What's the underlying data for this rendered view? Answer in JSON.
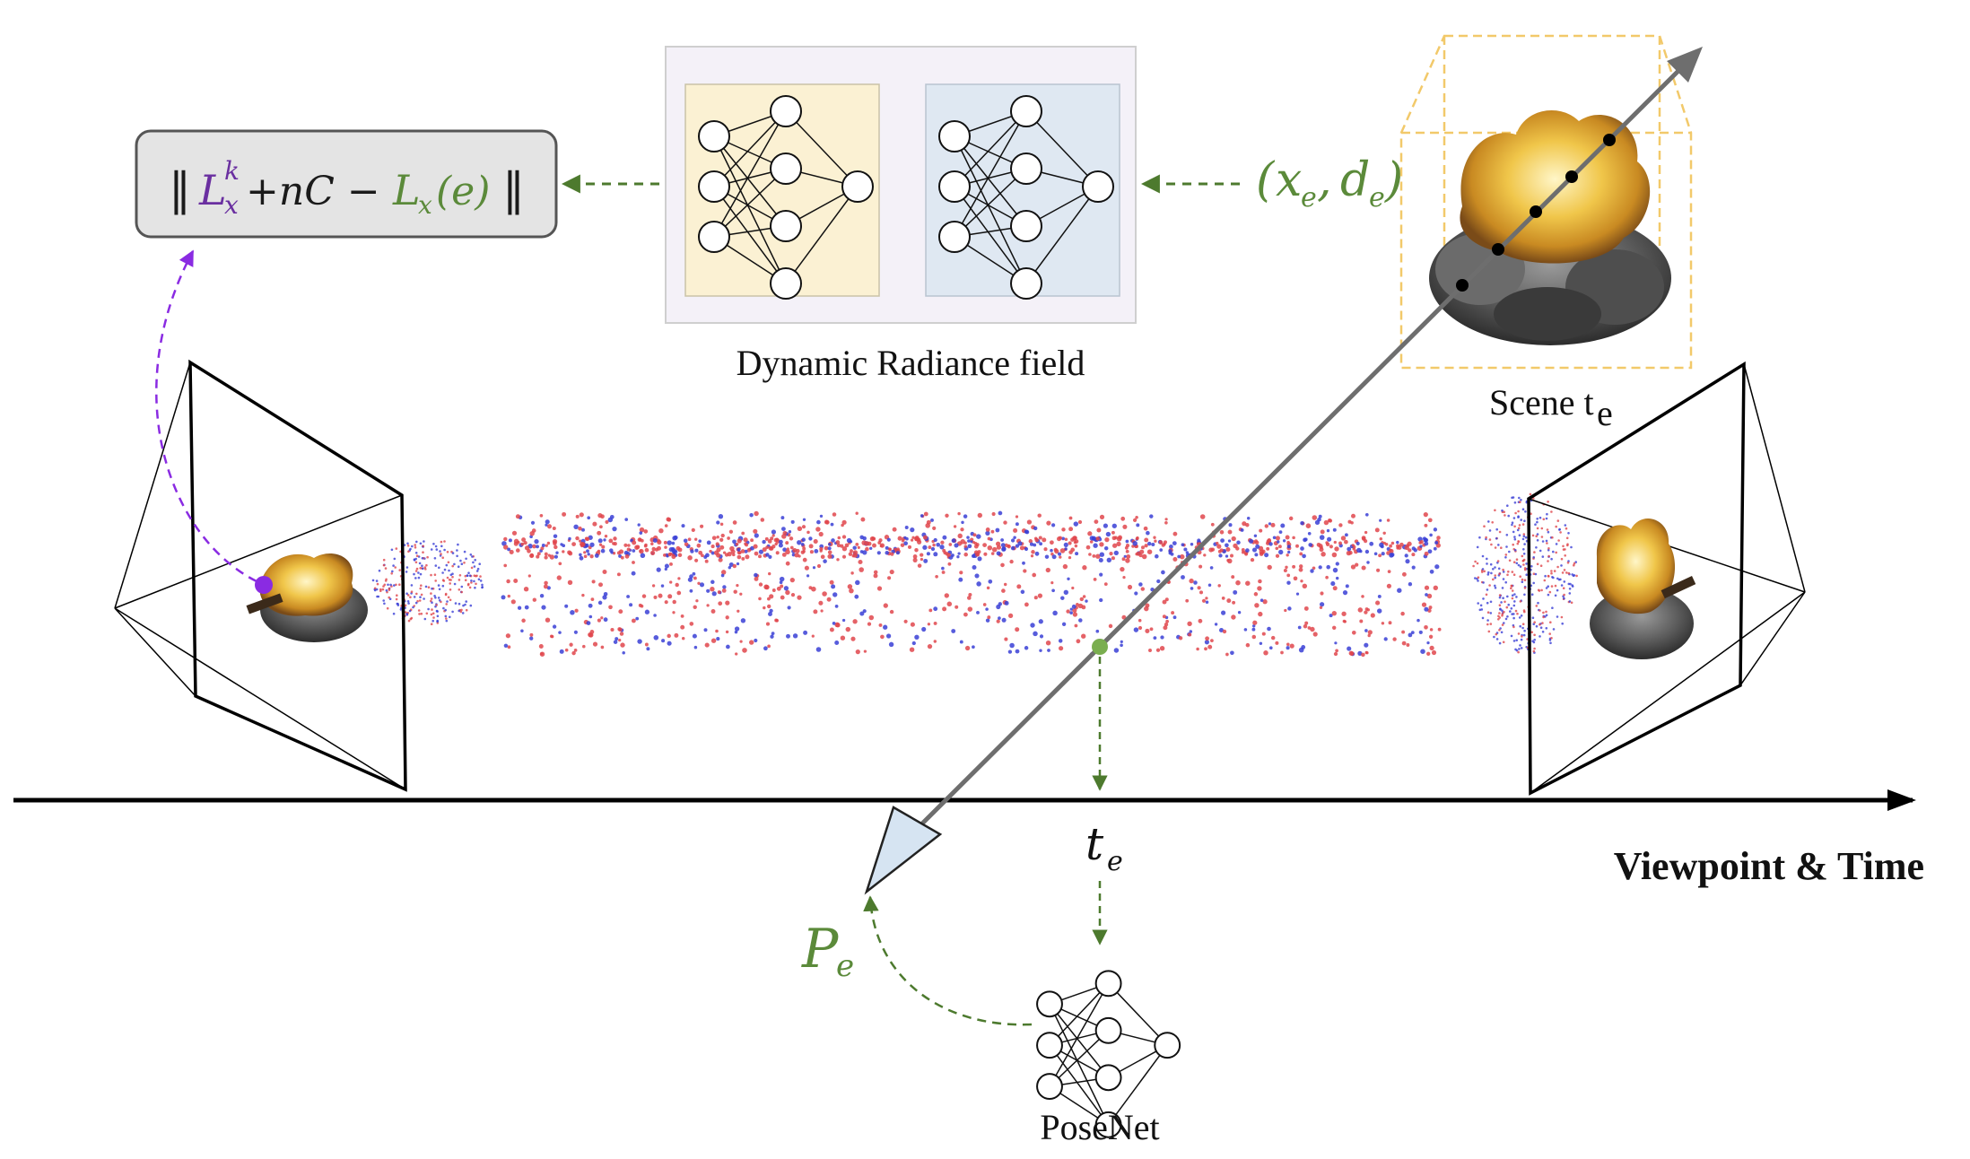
{
  "loss_box": {
    "norm_left": "‖",
    "term_k_base": "L",
    "term_k_sup": "k",
    "term_k_sub": "x",
    "plus_nc": "+nC −",
    "term_e_base": "L",
    "term_e_sub": "x",
    "term_e_arg": "(e)",
    "norm_right": "‖",
    "colors": {
      "purple": "#6a2fa0",
      "green": "#5b8a3a",
      "dark": "#1a1a1a",
      "box_fill": "#e4e4e4",
      "box_stroke": "#555555"
    }
  },
  "radiance_field": {
    "caption": "Dynamic Radiance field",
    "panel_left_color": "#fbf1d3",
    "panel_right_color": "#dfe8f2",
    "outer_bg": "#f4f1f8"
  },
  "ray_input": {
    "open": "(",
    "x": "x",
    "x_sub": "e",
    "comma": ", ",
    "d": "d",
    "d_sub": "e",
    "close": ")"
  },
  "scene": {
    "label": "Scene t",
    "label_sub": "e",
    "box_color": "#f2c96a"
  },
  "timeline": {
    "axis_label": "Viewpoint & Time",
    "time_label": "t",
    "time_sub": "e"
  },
  "pose": {
    "pose_label": "P",
    "pose_sub": "e",
    "posenet_caption": "PoseNet"
  },
  "point_cloud": {
    "red": "#e0474c",
    "blue": "#3a3fd6"
  }
}
